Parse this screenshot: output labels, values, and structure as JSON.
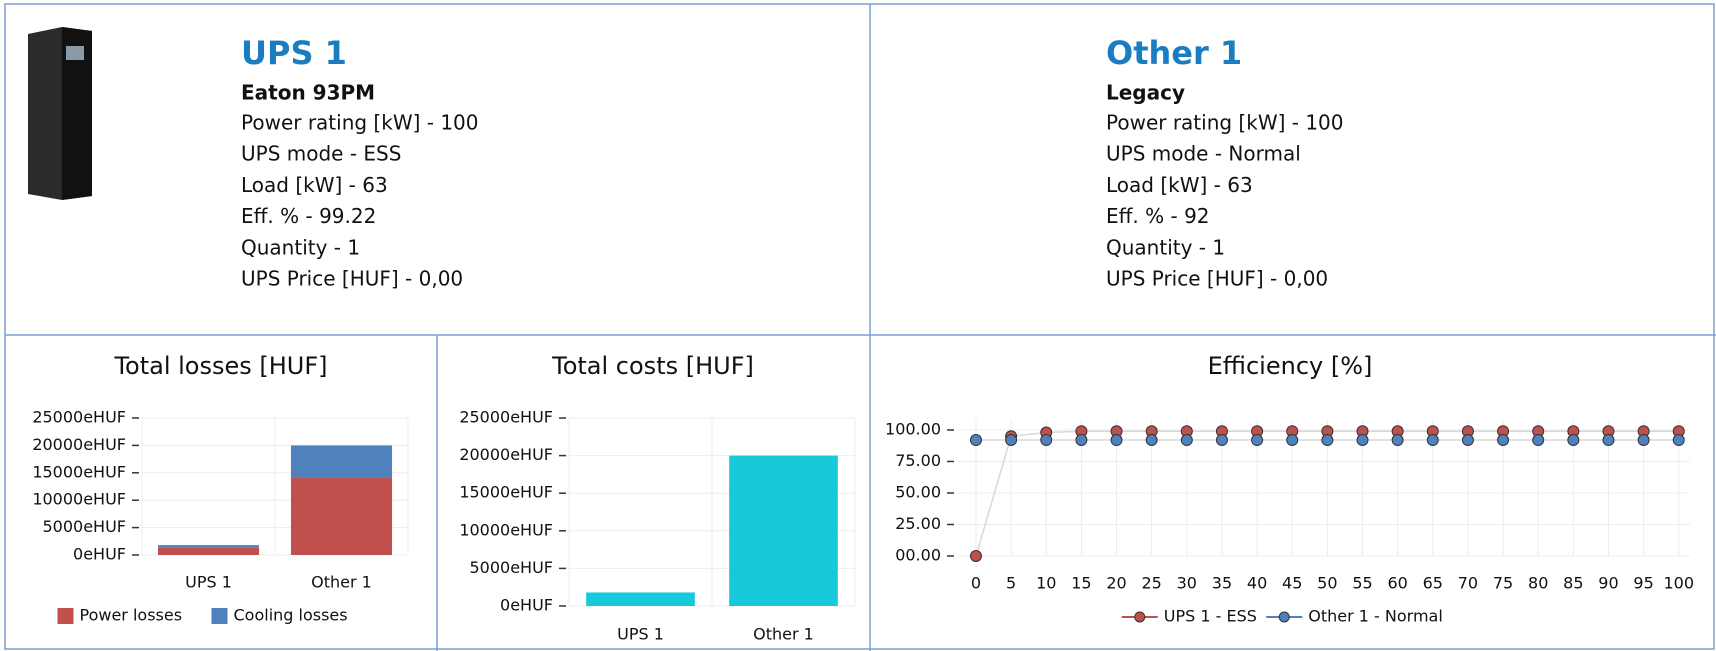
{
  "panels": [
    {
      "title": "UPS 1",
      "model": "Eaton 93PM",
      "lines": [
        "Power rating [kW] - 100",
        "UPS mode - ESS",
        "Load [kW] - 63",
        "Eff. % - 99.22",
        "Quantity - 1",
        "UPS Price [HUF] - 0,00"
      ]
    },
    {
      "title": "Other 1",
      "model": "Legacy",
      "lines": [
        "Power rating [kW] - 100",
        "UPS mode - Normal",
        "Load [kW] - 63",
        "Eff. % - 92",
        "Quantity - 1",
        "UPS Price [HUF] - 0,00"
      ]
    }
  ],
  "chart_data": [
    {
      "type": "bar",
      "stacked": true,
      "title": "Total losses [HUF]",
      "categories": [
        "UPS 1",
        "Other 1"
      ],
      "series": [
        {
          "name": "Power losses",
          "color": "#c0504d",
          "values": [
            1400,
            14200
          ]
        },
        {
          "name": "Cooling losses",
          "color": "#4f81bd",
          "values": [
            400,
            5800
          ]
        }
      ],
      "ylim": [
        0,
        25000
      ],
      "yticks": [
        {
          "value": 0,
          "label": "0eHUF"
        },
        {
          "value": 5000,
          "label": "5000eHUF"
        },
        {
          "value": 10000,
          "label": "10000eHUF"
        },
        {
          "value": 15000,
          "label": "15000eHUF"
        },
        {
          "value": 20000,
          "label": "20000eHUF"
        },
        {
          "value": 25000,
          "label": "25000eHUF"
        }
      ],
      "grid": true,
      "legend": "bottom"
    },
    {
      "type": "bar",
      "title": "Total costs [HUF]",
      "categories": [
        "UPS 1",
        "Other 1"
      ],
      "values": [
        1800,
        20000
      ],
      "color": "#17c9d9",
      "ylim": [
        0,
        25000
      ],
      "yticks": [
        {
          "value": 0,
          "label": "0eHUF"
        },
        {
          "value": 5000,
          "label": "5000eHUF"
        },
        {
          "value": 10000,
          "label": "10000eHUF"
        },
        {
          "value": 15000,
          "label": "15000eHUF"
        },
        {
          "value": 20000,
          "label": "20000eHUF"
        },
        {
          "value": 25000,
          "label": "25000eHUF"
        }
      ],
      "grid": true
    },
    {
      "type": "line",
      "title": "Efficiency [%]",
      "x": [
        0,
        5,
        10,
        15,
        20,
        25,
        30,
        35,
        40,
        45,
        50,
        55,
        60,
        65,
        70,
        75,
        80,
        85,
        90,
        95,
        100
      ],
      "series": [
        {
          "name": "UPS 1 - ESS",
          "color": "#c0504d",
          "values": [
            0,
            95,
            98,
            99,
            99,
            99,
            99,
            99,
            99,
            99,
            99,
            99,
            99,
            99,
            99,
            99,
            99,
            99,
            99,
            99,
            99
          ]
        },
        {
          "name": "Other 1 - Normal",
          "color": "#4f81bd",
          "values": [
            92,
            92,
            92,
            92,
            92,
            92,
            92,
            92,
            92,
            92,
            92,
            92,
            92,
            92,
            92,
            92,
            92,
            92,
            92,
            92,
            92
          ]
        }
      ],
      "xlim": [
        -2.7,
        101.6
      ],
      "xticks": [
        0,
        5,
        10,
        15,
        20,
        25,
        30,
        35,
        40,
        45,
        50,
        55,
        60,
        65,
        70,
        75,
        80,
        85,
        90,
        95,
        100
      ],
      "ylim": [
        0,
        108.7
      ],
      "yticks": [
        {
          "value": 0,
          "label": "00.00"
        },
        {
          "value": 25,
          "label": "25.00"
        },
        {
          "value": 50,
          "label": "50.00"
        },
        {
          "value": 75,
          "label": "75.00"
        },
        {
          "value": 100,
          "label": "100.00"
        }
      ],
      "grid": true,
      "legend": "bottom"
    }
  ]
}
